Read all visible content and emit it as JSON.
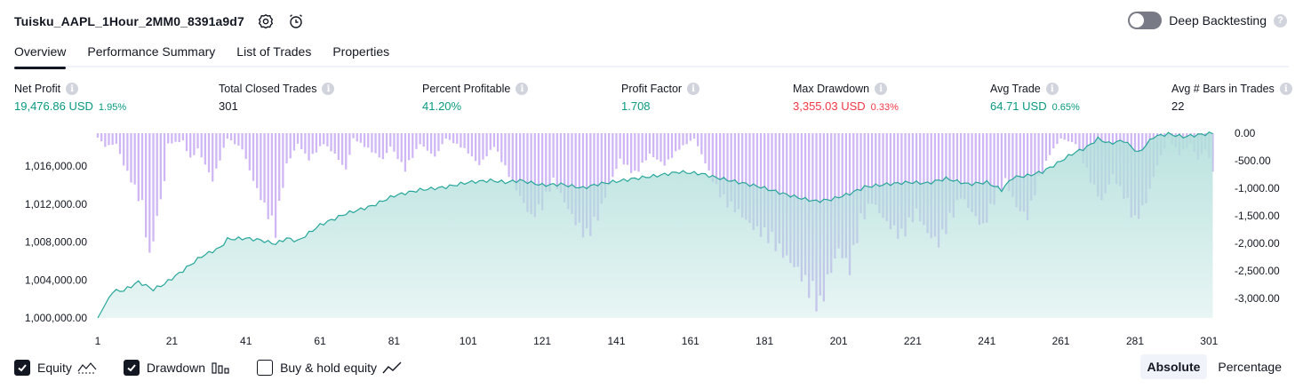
{
  "header": {
    "title": "Tuisku_AAPL_1Hour_2MM0_8391a9d7",
    "deep_backtesting_label": "Deep Backtesting",
    "deep_backtesting_enabled": false
  },
  "tabs": [
    {
      "label": "Overview",
      "active": true
    },
    {
      "label": "Performance Summary",
      "active": false
    },
    {
      "label": "List of Trades",
      "active": false
    },
    {
      "label": "Properties",
      "active": false
    }
  ],
  "metrics": {
    "net_profit": {
      "label": "Net Profit",
      "value": "19,476.86 USD",
      "pct": "1.95%"
    },
    "total_closed_trades": {
      "label": "Total Closed Trades",
      "value": "301"
    },
    "percent_profitable": {
      "label": "Percent Profitable",
      "value": "41.20%"
    },
    "profit_factor": {
      "label": "Profit Factor",
      "value": "1.708"
    },
    "max_drawdown": {
      "label": "Max Drawdown",
      "value": "3,355.03 USD",
      "pct": "0.33%"
    },
    "avg_trade": {
      "label": "Avg Trade",
      "value": "64.71 USD",
      "pct": "0.65%"
    },
    "avg_bars": {
      "label": "Avg # Bars in Trades",
      "value": "22"
    }
  },
  "colors": {
    "equity_line": "#26a69a",
    "equity_fill": "#b2dfdb",
    "drawdown_bar": "#c7a9f2",
    "positive": "#089981",
    "negative": "#f23645"
  },
  "chart_data": {
    "type": "area",
    "x_ticks": [
      1,
      21,
      41,
      61,
      81,
      101,
      121,
      141,
      161,
      181,
      201,
      221,
      241,
      261,
      281,
      301
    ],
    "y_left_ticks": [
      "1,000,000.00",
      "1,004,000.00",
      "1,008,000.00",
      "1,012,000.00",
      "1,016,000.00"
    ],
    "y_left_values": [
      1000000,
      1004000,
      1008000,
      1012000,
      1016000
    ],
    "y_right_ticks": [
      "0.00",
      "-500.00",
      "-1,000.00",
      "-1,500.00",
      "-2,000.00",
      "-2,500.00",
      "-3,000.00"
    ],
    "y_right_values": [
      0,
      -500,
      -1000,
      -1500,
      -2000,
      -2500,
      -3000
    ],
    "x_range": [
      1,
      305
    ],
    "y_left_range": [
      1000000,
      1019476.86
    ],
    "y_right_range": [
      -3355.03,
      0
    ],
    "equity_anchors": [
      [
        1,
        1000000
      ],
      [
        5,
        1002800
      ],
      [
        8,
        1002900
      ],
      [
        12,
        1003800
      ],
      [
        16,
        1003000
      ],
      [
        19,
        1003600
      ],
      [
        24,
        1005000
      ],
      [
        29,
        1006500
      ],
      [
        34,
        1007400
      ],
      [
        36,
        1008300
      ],
      [
        41,
        1008400
      ],
      [
        45,
        1008200
      ],
      [
        49,
        1007800
      ],
      [
        52,
        1008400
      ],
      [
        55,
        1008100
      ],
      [
        61,
        1009800
      ],
      [
        68,
        1011000
      ],
      [
        75,
        1011800
      ],
      [
        81,
        1012900
      ],
      [
        88,
        1013500
      ],
      [
        95,
        1013800
      ],
      [
        101,
        1014300
      ],
      [
        107,
        1014500
      ],
      [
        111,
        1014300
      ],
      [
        115,
        1014500
      ],
      [
        121,
        1014000
      ],
      [
        126,
        1014100
      ],
      [
        132,
        1013700
      ],
      [
        136,
        1014100
      ],
      [
        141,
        1014400
      ],
      [
        146,
        1014700
      ],
      [
        152,
        1015000
      ],
      [
        158,
        1015400
      ],
      [
        164,
        1015200
      ],
      [
        168,
        1014800
      ],
      [
        174,
        1014300
      ],
      [
        180,
        1013800
      ],
      [
        186,
        1013100
      ],
      [
        191,
        1012600
      ],
      [
        195,
        1012300
      ],
      [
        199,
        1012500
      ],
      [
        204,
        1013100
      ],
      [
        208,
        1013800
      ],
      [
        214,
        1014100
      ],
      [
        220,
        1014300
      ],
      [
        225,
        1014200
      ],
      [
        230,
        1014700
      ],
      [
        236,
        1014100
      ],
      [
        241,
        1014300
      ],
      [
        245,
        1013500
      ],
      [
        248,
        1014800
      ],
      [
        252,
        1015000
      ],
      [
        256,
        1015400
      ],
      [
        260,
        1016300
      ],
      [
        264,
        1017300
      ],
      [
        268,
        1018000
      ],
      [
        271,
        1018900
      ],
      [
        274,
        1018400
      ],
      [
        278,
        1018700
      ],
      [
        282,
        1017400
      ],
      [
        286,
        1019100
      ],
      [
        290,
        1019400
      ],
      [
        294,
        1019100
      ],
      [
        298,
        1019300
      ],
      [
        302,
        1019476
      ]
    ],
    "drawdown_anchors": [
      [
        1,
        -80
      ],
      [
        3,
        -250
      ],
      [
        6,
        -200
      ],
      [
        8,
        -600
      ],
      [
        10,
        -900
      ],
      [
        13,
        -1400
      ],
      [
        15,
        -2400
      ],
      [
        17,
        -1600
      ],
      [
        19,
        -900
      ],
      [
        20,
        -200
      ],
      [
        24,
        -150
      ],
      [
        26,
        -500
      ],
      [
        28,
        -300
      ],
      [
        32,
        -900
      ],
      [
        34,
        -500
      ],
      [
        36,
        -100
      ],
      [
        40,
        -300
      ],
      [
        43,
        -900
      ],
      [
        46,
        -1400
      ],
      [
        49,
        -1900
      ],
      [
        50,
        -1400
      ],
      [
        52,
        -600
      ],
      [
        55,
        -200
      ],
      [
        58,
        -500
      ],
      [
        62,
        -200
      ],
      [
        65,
        -400
      ],
      [
        68,
        -700
      ],
      [
        70,
        -100
      ],
      [
        74,
        -300
      ],
      [
        78,
        -500
      ],
      [
        80,
        -250
      ],
      [
        84,
        -700
      ],
      [
        88,
        -200
      ],
      [
        92,
        -450
      ],
      [
        95,
        -100
      ],
      [
        100,
        -300
      ],
      [
        104,
        -600
      ],
      [
        108,
        -250
      ],
      [
        112,
        -800
      ],
      [
        115,
        -1200
      ],
      [
        118,
        -1600
      ],
      [
        121,
        -1400
      ],
      [
        124,
        -900
      ],
      [
        127,
        -1300
      ],
      [
        130,
        -1700
      ],
      [
        133,
        -2000
      ],
      [
        136,
        -1600
      ],
      [
        139,
        -1000
      ],
      [
        142,
        -500
      ],
      [
        146,
        -800
      ],
      [
        150,
        -400
      ],
      [
        154,
        -600
      ],
      [
        158,
        -300
      ],
      [
        162,
        -100
      ],
      [
        164,
        -400
      ],
      [
        167,
        -900
      ],
      [
        170,
        -1300
      ],
      [
        174,
        -1500
      ],
      [
        178,
        -1800
      ],
      [
        182,
        -2000
      ],
      [
        186,
        -2300
      ],
      [
        190,
        -2600
      ],
      [
        193,
        -3000
      ],
      [
        196,
        -3355
      ],
      [
        198,
        -2800
      ],
      [
        201,
        -2200
      ],
      [
        204,
        -2600
      ],
      [
        207,
        -1700
      ],
      [
        210,
        -1300
      ],
      [
        214,
        -1700
      ],
      [
        218,
        -2000
      ],
      [
        222,
        -1500
      ],
      [
        225,
        -1900
      ],
      [
        228,
        -2100
      ],
      [
        231,
        -1700
      ],
      [
        234,
        -1200
      ],
      [
        237,
        -1500
      ],
      [
        240,
        -1800
      ],
      [
        243,
        -1300
      ],
      [
        246,
        -900
      ],
      [
        249,
        -1400
      ],
      [
        252,
        -1600
      ],
      [
        255,
        -900
      ],
      [
        258,
        -400
      ],
      [
        261,
        -100
      ],
      [
        265,
        -200
      ],
      [
        269,
        -900
      ],
      [
        272,
        -1300
      ],
      [
        275,
        -800
      ],
      [
        278,
        -1200
      ],
      [
        281,
        -1700
      ],
      [
        284,
        -1300
      ],
      [
        287,
        -600
      ],
      [
        290,
        -100
      ],
      [
        293,
        -400
      ],
      [
        296,
        -200
      ],
      [
        298,
        -500
      ],
      [
        300,
        -300
      ],
      [
        302,
        -700
      ]
    ]
  },
  "legend": [
    {
      "label": "Equity",
      "checked": true,
      "icon": "equity-area-icon"
    },
    {
      "label": "Drawdown",
      "checked": true,
      "icon": "bar-chart-icon"
    },
    {
      "label": "Buy & hold equity",
      "checked": false,
      "icon": "line-chart-icon"
    }
  ],
  "mode": {
    "absolute": "Absolute",
    "percentage": "Percentage",
    "selected": "absolute"
  }
}
